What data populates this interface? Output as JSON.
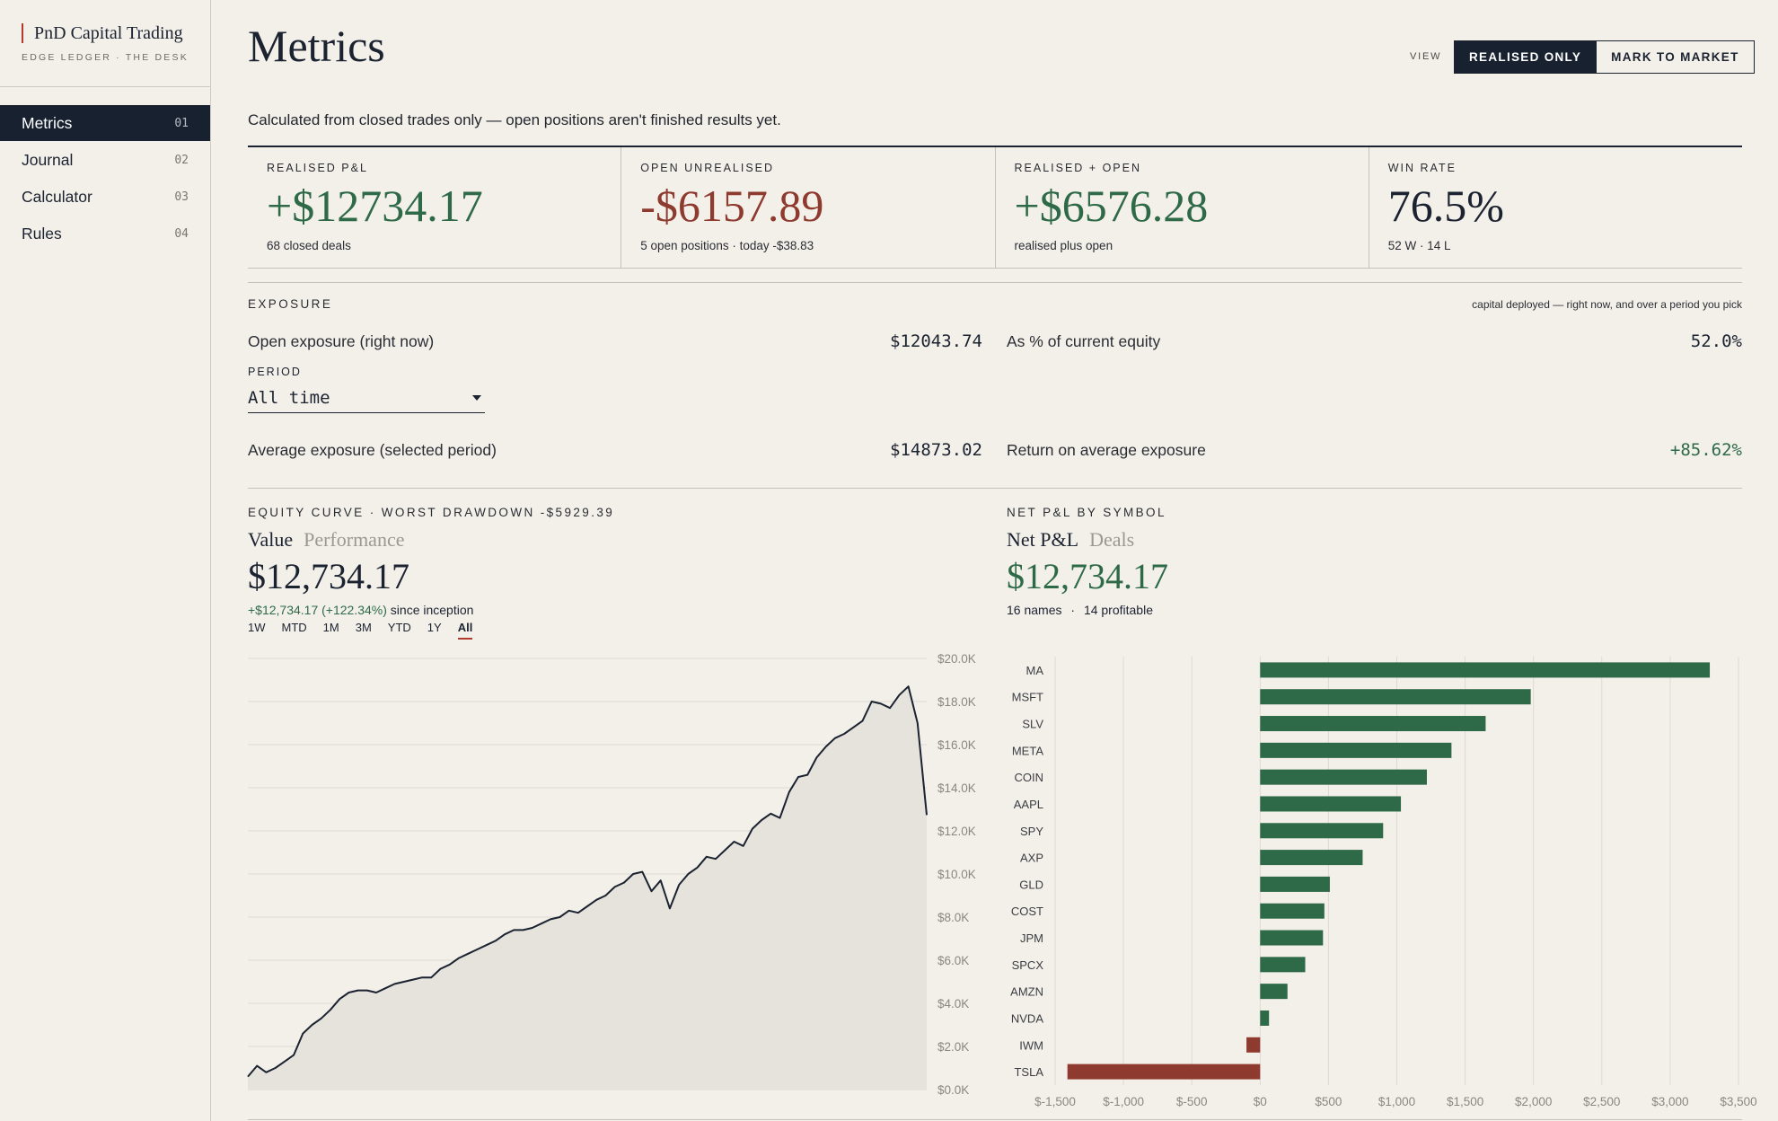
{
  "brand": {
    "title": "PnD Capital Trading",
    "subtitle": "EDGE LEDGER · THE DESK"
  },
  "nav": [
    {
      "label": "Metrics",
      "num": "01",
      "active": true
    },
    {
      "label": "Journal",
      "num": "02"
    },
    {
      "label": "Calculator",
      "num": "03"
    },
    {
      "label": "Rules",
      "num": "04"
    }
  ],
  "header": {
    "title": "Metrics",
    "view_label": "VIEW",
    "view_options": [
      "REALISED ONLY",
      "MARK TO MARKET"
    ],
    "subtitle": "Calculated from closed trades only — open positions aren't finished results yet."
  },
  "kpis": [
    {
      "label": "REALISED P&L",
      "value": "+$12734.17",
      "foot": "68 closed deals",
      "tone": "green"
    },
    {
      "label": "OPEN UNREALISED",
      "value": "-$6157.89",
      "foot": "5 open positions · today -$38.83",
      "tone": "red"
    },
    {
      "label": "REALISED + OPEN",
      "value": "+$6576.28",
      "foot": "realised plus open",
      "tone": "green"
    },
    {
      "label": "WIN RATE",
      "value": "76.5%",
      "foot": "52 W · 14 L",
      "tone": "dark"
    }
  ],
  "exposure": {
    "label": "EXPOSURE",
    "note": "capital deployed — right now, and over a period you pick",
    "open_label": "Open exposure (right now)",
    "open_value": "$12043.74",
    "pct_label": "As % of current equity",
    "pct_value": "52.0%",
    "period_label": "PERIOD",
    "period_value": "All time",
    "avg_label": "Average exposure (selected period)",
    "avg_value": "$14873.02",
    "return_label": "Return on average exposure",
    "return_value": "+85.62%"
  },
  "equity": {
    "header": "EQUITY CURVE · WORST DRAWDOWN -$5929.39",
    "tabs": [
      "Value",
      "Performance"
    ],
    "value": "$12,734.17",
    "change": "+$12,734.17 (+122.34%)",
    "change_suffix": "since inception",
    "ranges": [
      "1W",
      "MTD",
      "1M",
      "3M",
      "YTD",
      "1Y",
      "All"
    ],
    "selected_range": "All",
    "fill_color": "#e6e3dc",
    "line_color": "#1b2230"
  },
  "symbols": {
    "header": "NET P&L BY SYMBOL",
    "tabs": [
      "Net P&L",
      "Deals"
    ],
    "value": "$12,734.17",
    "foot_names": "16 names",
    "foot_sep": "·",
    "foot_profitable": "14 profitable",
    "positive_color": "#2e6a47",
    "negative_color": "#8e3a2e"
  },
  "chart_data": [
    {
      "type": "area",
      "yticks": [
        "$0.0K",
        "$2.0K",
        "$4.0K",
        "$6.0K",
        "$8.0K",
        "$10.0K",
        "$12.0K",
        "$14.0K",
        "$16.0K",
        "$18.0K",
        "$20.0K"
      ],
      "ylim": [
        0,
        20000
      ],
      "grid": true,
      "y": [
        600,
        1100,
        800,
        1000,
        1300,
        1600,
        2600,
        3000,
        3300,
        3700,
        4200,
        4500,
        4600,
        4600,
        4500,
        4700,
        4900,
        5000,
        5100,
        5200,
        5200,
        5600,
        5800,
        6100,
        6300,
        6500,
        6700,
        6900,
        7200,
        7400,
        7400,
        7500,
        7700,
        7900,
        8000,
        8300,
        8200,
        8500,
        8800,
        9000,
        9400,
        9600,
        10000,
        10100,
        9200,
        9700,
        8400,
        9500,
        10000,
        10300,
        10800,
        10700,
        11100,
        11500,
        11300,
        12100,
        12500,
        12800,
        12600,
        13800,
        14500,
        14600,
        15400,
        15900,
        16300,
        16500,
        16800,
        17100,
        18000,
        17900,
        17700,
        18300,
        18700,
        17000,
        12734
      ]
    },
    {
      "type": "bar",
      "orientation": "horizontal",
      "categories": [
        "MA",
        "MSFT",
        "SLV",
        "META",
        "COIN",
        "AAPL",
        "SPY",
        "AXP",
        "GLD",
        "COST",
        "JPM",
        "SPCX",
        "AMZN",
        "NVDA",
        "IWM",
        "TSLA"
      ],
      "values": [
        3290,
        1980,
        1650,
        1400,
        1220,
        1030,
        900,
        750,
        510,
        470,
        460,
        330,
        200,
        65,
        -100,
        -1410
      ],
      "xticks": [
        "$-1,500",
        "$-1,000",
        "$-500",
        "$0",
        "$500",
        "$1,000",
        "$1,500",
        "$2,000",
        "$2,500",
        "$3,000",
        "$3,500"
      ],
      "xlim": [
        -1500,
        3500
      ],
      "grid": true
    }
  ]
}
